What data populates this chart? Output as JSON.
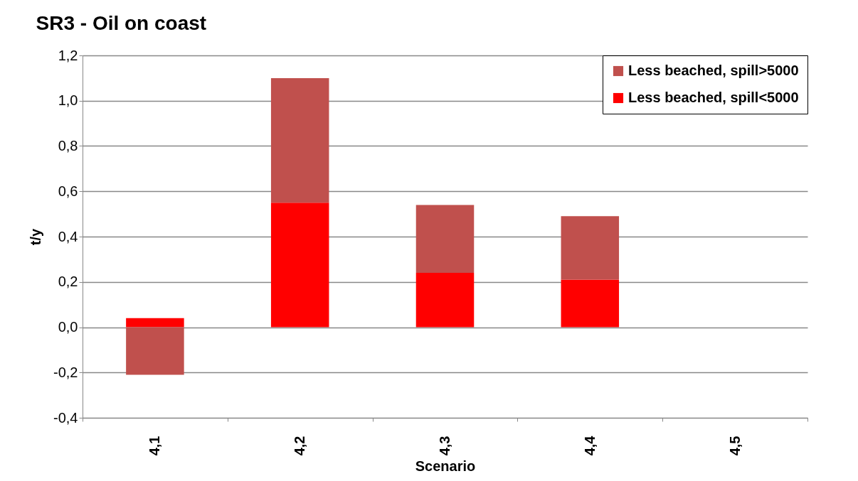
{
  "chart_data": {
    "type": "bar",
    "title": "SR3 - Oil on coast",
    "xlabel": "Scenario",
    "ylabel": "t/y",
    "categories": [
      "4,1",
      "4,2",
      "4,3",
      "4,4",
      "4,5"
    ],
    "series": [
      {
        "name": "Less beached, spill<5000",
        "color": "#ff0000",
        "values": [
          0.04,
          0.55,
          0.24,
          0.21,
          null
        ]
      },
      {
        "name": "Less beached, spill>5000",
        "color": "#c0504d",
        "values": [
          -0.21,
          0.55,
          0.3,
          0.28,
          null
        ]
      }
    ],
    "stacked": true,
    "ylim": [
      -0.4,
      1.2
    ],
    "yticks": [
      {
        "value": -0.4,
        "label": "-0,4"
      },
      {
        "value": -0.2,
        "label": "-0,2"
      },
      {
        "value": 0,
        "label": "0,0"
      },
      {
        "value": 0.2,
        "label": "0,2"
      },
      {
        "value": 0.4,
        "label": "0,4"
      },
      {
        "value": 0.6,
        "label": "0,6"
      },
      {
        "value": 0.8,
        "label": "0,8"
      },
      {
        "value": 1.0,
        "label": "1,0"
      },
      {
        "value": 1.2,
        "label": "1,2"
      }
    ],
    "grid": "y",
    "legend": "top right"
  }
}
